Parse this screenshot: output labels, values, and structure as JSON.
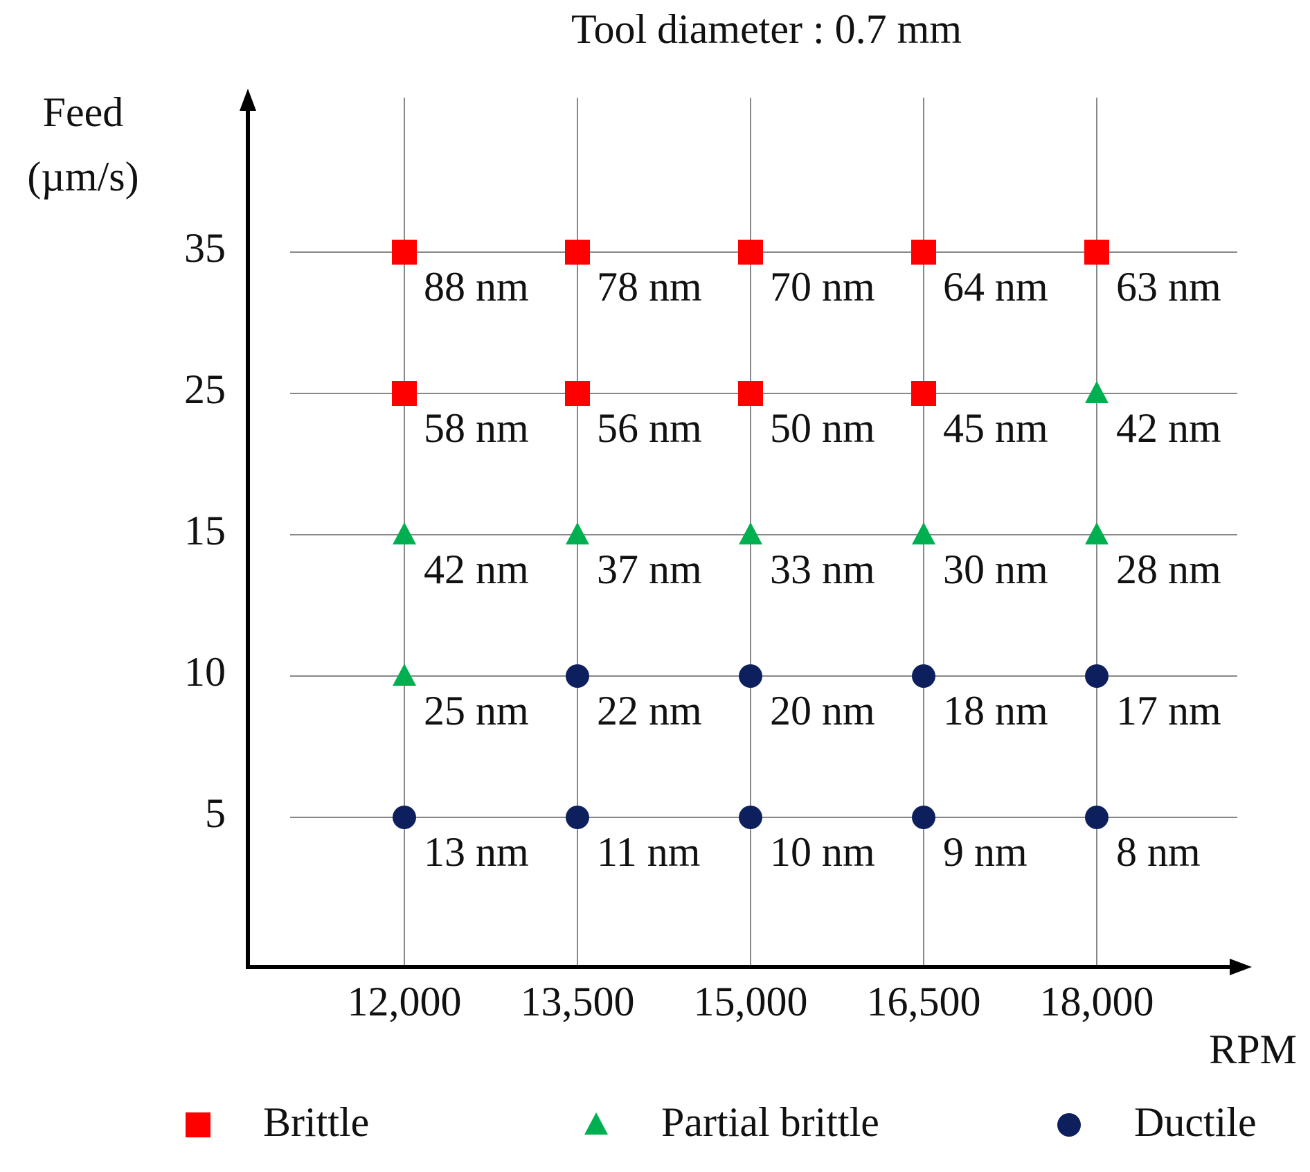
{
  "chart_data": {
    "type": "scatter",
    "title": "Tool diameter : 0.7 mm",
    "x_label": "RPM",
    "y_label_lines": [
      "Feed",
      "(µm/s)"
    ],
    "xticks": [
      {
        "value": 12000,
        "label": "12,000"
      },
      {
        "value": 13500,
        "label": "13,500"
      },
      {
        "value": 15000,
        "label": "15,000"
      },
      {
        "value": 16500,
        "label": "16,500"
      },
      {
        "value": 18000,
        "label": "18,000"
      }
    ],
    "yticks": [
      5,
      10,
      15,
      25,
      35
    ],
    "grid": true,
    "series": [
      {
        "name": "Brittle",
        "color": "#ff0000",
        "marker": "square",
        "x": [
          12000,
          13500,
          15000,
          16500,
          18000,
          12000,
          13500,
          15000,
          16500
        ],
        "y": [
          35,
          35,
          35,
          35,
          35,
          25,
          25,
          25,
          25
        ],
        "values": [
          88,
          78,
          70,
          64,
          63,
          58,
          56,
          50,
          45
        ],
        "value_labels": [
          "88 nm",
          "78 nm",
          "70 nm",
          "64 nm",
          "63 nm",
          "58 nm",
          "56 nm",
          "50 nm",
          "45 nm"
        ]
      },
      {
        "name": "Partial brittle",
        "color": "#00b050",
        "marker": "triangle",
        "x": [
          18000,
          12000,
          13500,
          15000,
          16500,
          18000,
          12000
        ],
        "y": [
          25,
          15,
          15,
          15,
          15,
          15,
          10
        ],
        "values": [
          42,
          42,
          37,
          33,
          30,
          28,
          25
        ],
        "value_labels": [
          "42 nm",
          "42 nm",
          "37 nm",
          "33 nm",
          "30 nm",
          "28 nm",
          "25 nm"
        ]
      },
      {
        "name": "Ductile",
        "color": "#0d1f5c",
        "marker": "circle",
        "x": [
          13500,
          15000,
          16500,
          18000,
          12000,
          13500,
          15000,
          16500,
          18000
        ],
        "y": [
          10,
          10,
          10,
          10,
          5,
          5,
          5,
          5,
          5
        ],
        "values": [
          22,
          20,
          18,
          17,
          13,
          11,
          10,
          9,
          8
        ],
        "value_labels": [
          "22 nm",
          "20 nm",
          "18 nm",
          "17 nm",
          "13 nm",
          "11 nm",
          "10 nm",
          "9 nm",
          "8 nm"
        ]
      }
    ]
  }
}
